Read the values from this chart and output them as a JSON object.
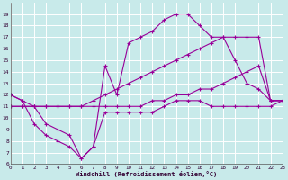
{
  "background_color": "#c8eaea",
  "grid_color": "#ffffff",
  "line_color": "#990099",
  "x_label": "Windchill (Refroidissement éolien,°C)",
  "xlim": [
    0,
    23
  ],
  "ylim": [
    6,
    20
  ],
  "yticks": [
    6,
    7,
    8,
    9,
    10,
    11,
    12,
    13,
    14,
    15,
    16,
    17,
    18,
    19
  ],
  "xticks": [
    0,
    1,
    2,
    3,
    4,
    5,
    6,
    7,
    8,
    9,
    10,
    11,
    12,
    13,
    14,
    15,
    16,
    17,
    18,
    19,
    20,
    21,
    22,
    23
  ],
  "series": [
    {
      "x": [
        0,
        1,
        2,
        3,
        4,
        5,
        6,
        7,
        8,
        9,
        10,
        11,
        12,
        13,
        14,
        15,
        16,
        17,
        18,
        19,
        20,
        21,
        22,
        23
      ],
      "y": [
        11.0,
        11.0,
        11.0,
        11.0,
        11.0,
        11.0,
        11.0,
        11.0,
        11.0,
        11.0,
        11.0,
        11.0,
        11.5,
        11.5,
        12.0,
        12.0,
        12.5,
        12.5,
        13.0,
        13.5,
        14.0,
        14.5,
        11.5,
        11.5
      ]
    },
    {
      "x": [
        0,
        1,
        2,
        3,
        4,
        5,
        6,
        7,
        8,
        9,
        10,
        11,
        12,
        13,
        14,
        15,
        16,
        17,
        18,
        19,
        20,
        21,
        22,
        23
      ],
      "y": [
        11.0,
        11.0,
        11.0,
        11.0,
        11.0,
        11.0,
        11.0,
        11.5,
        12.0,
        12.5,
        13.0,
        13.5,
        14.0,
        14.5,
        15.0,
        15.5,
        16.0,
        16.5,
        17.0,
        17.0,
        17.0,
        17.0,
        11.5,
        11.5
      ]
    },
    {
      "x": [
        0,
        1,
        2,
        3,
        4,
        5,
        6,
        7,
        8,
        9,
        10,
        11,
        12,
        13,
        14,
        15,
        16,
        17,
        18,
        19,
        20,
        21,
        22,
        23
      ],
      "y": [
        12.0,
        11.5,
        9.5,
        8.5,
        8.0,
        7.5,
        6.5,
        7.5,
        10.5,
        10.5,
        10.5,
        10.5,
        10.5,
        11.0,
        11.5,
        11.5,
        11.5,
        11.0,
        11.0,
        11.0,
        11.0,
        11.0,
        11.0,
        11.5
      ]
    },
    {
      "x": [
        0,
        1,
        2,
        3,
        4,
        5,
        6,
        7,
        8,
        9,
        10,
        11,
        12,
        13,
        14,
        15,
        16,
        17,
        18,
        19,
        20,
        21,
        22,
        23
      ],
      "y": [
        12.0,
        11.5,
        11.0,
        9.5,
        9.0,
        8.5,
        6.5,
        7.5,
        14.5,
        12.0,
        16.5,
        17.0,
        17.5,
        18.5,
        19.0,
        19.0,
        18.0,
        17.0,
        17.0,
        15.0,
        13.0,
        12.5,
        11.5,
        11.5
      ]
    }
  ]
}
